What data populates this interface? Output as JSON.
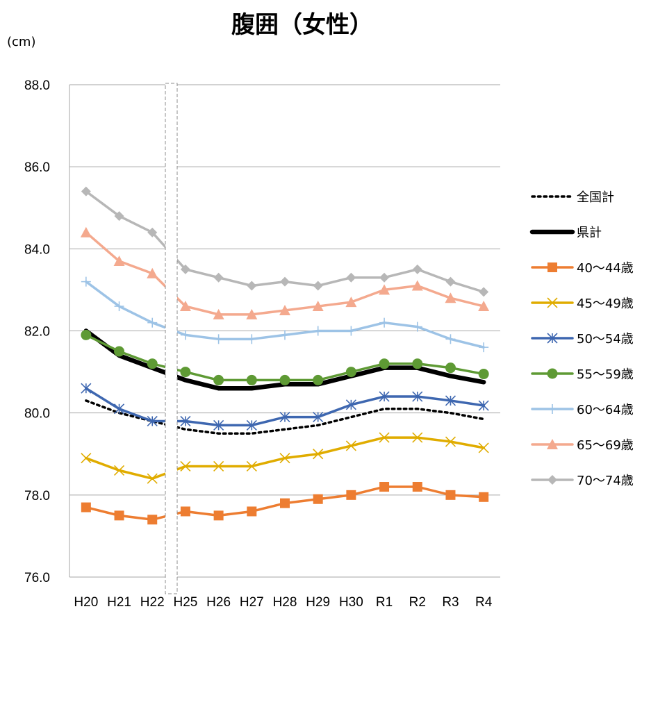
{
  "title": "腹囲（女性）",
  "unit_label": "(cm)",
  "chart_data": {
    "type": "line",
    "title": "腹囲（女性）",
    "ylabel": "(cm)",
    "xlabel": "",
    "categories": [
      "H20",
      "H21",
      "H22",
      "H25",
      "H26",
      "H27",
      "H28",
      "H29",
      "H30",
      "R1",
      "R2",
      "R3",
      "R4"
    ],
    "ylim": [
      76.0,
      88.0
    ],
    "yticks": [
      "76.0",
      "78.0",
      "80.0",
      "82.0",
      "84.0",
      "86.0",
      "88.0"
    ],
    "grid": true,
    "legend_position": "right",
    "axis_break_between": [
      "H22",
      "H25"
    ],
    "series": [
      {
        "name": "全国計",
        "color": "#000000",
        "style": "dotted",
        "marker": "none",
        "values": [
          80.3,
          80.0,
          79.8,
          79.6,
          79.5,
          79.5,
          79.6,
          79.7,
          79.9,
          80.1,
          80.1,
          80.0,
          79.85
        ]
      },
      {
        "name": "県計",
        "color": "#000000",
        "style": "thick",
        "marker": "none",
        "values": [
          82.0,
          81.4,
          81.1,
          80.8,
          80.6,
          80.6,
          80.7,
          80.7,
          80.9,
          81.1,
          81.1,
          80.9,
          80.75
        ]
      },
      {
        "name": "40～44歳",
        "color": "#ED7D31",
        "style": "solid",
        "marker": "square",
        "values": [
          77.7,
          77.5,
          77.4,
          77.6,
          77.5,
          77.6,
          77.8,
          77.9,
          78.0,
          78.2,
          78.2,
          78.0,
          77.95
        ]
      },
      {
        "name": "45～49歳",
        "color": "#E0AC00",
        "style": "solid",
        "marker": "x",
        "values": [
          78.9,
          78.6,
          78.4,
          78.7,
          78.7,
          78.7,
          78.9,
          79.0,
          79.2,
          79.4,
          79.4,
          79.3,
          79.15
        ]
      },
      {
        "name": "50～54歳",
        "color": "#3E67B0",
        "style": "solid",
        "marker": "star",
        "values": [
          80.6,
          80.1,
          79.8,
          79.8,
          79.7,
          79.7,
          79.9,
          79.9,
          80.2,
          80.4,
          80.4,
          80.3,
          80.18
        ]
      },
      {
        "name": "55～59歳",
        "color": "#5E9A34",
        "style": "solid",
        "marker": "circle",
        "values": [
          81.9,
          81.5,
          81.2,
          81.0,
          80.8,
          80.8,
          80.8,
          80.8,
          81.0,
          81.2,
          81.2,
          81.1,
          80.95
        ]
      },
      {
        "name": "60～64歳",
        "color": "#9DC3E6",
        "style": "solid",
        "marker": "plus",
        "values": [
          83.2,
          82.6,
          82.2,
          81.9,
          81.8,
          81.8,
          81.9,
          82.0,
          82.0,
          82.2,
          82.1,
          81.8,
          81.6
        ]
      },
      {
        "name": "65～69歳",
        "color": "#F4A98E",
        "style": "solid",
        "marker": "triangle",
        "values": [
          84.4,
          83.7,
          83.4,
          82.6,
          82.4,
          82.4,
          82.5,
          82.6,
          82.7,
          83.0,
          83.1,
          82.8,
          82.6
        ]
      },
      {
        "name": "70～74歳",
        "color": "#B7B7B7",
        "style": "solid",
        "marker": "diamond",
        "values": [
          85.4,
          84.8,
          84.4,
          83.5,
          83.3,
          83.1,
          83.2,
          83.1,
          83.3,
          83.3,
          83.5,
          83.2,
          82.95
        ]
      }
    ]
  }
}
